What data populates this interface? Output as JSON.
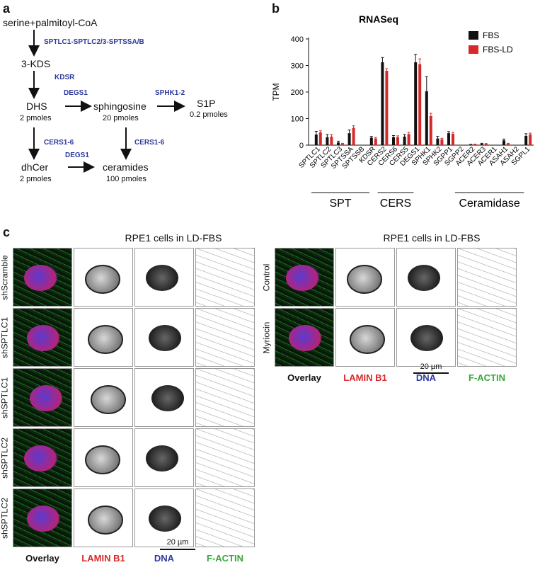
{
  "panel_a": {
    "letter": "a",
    "start": "serine+palmitoyl-CoA",
    "enzyme_spt": "SPTLC1-SPTLC2/3-SPTSSA/B",
    "kds": "3-KDS",
    "enzyme_kdsr": "KDSR",
    "dhs": "DHS",
    "dhs_amt": "2 pmoles",
    "enzyme_degs1_top": "DEGS1",
    "sphingosine": "sphingosine",
    "sphingosine_amt": "20 pmoles",
    "enzyme_sphk": "SPHK1-2",
    "s1p": "S1P",
    "s1p_amt": "0.2 pmoles",
    "enzyme_cers_left": "CERS1-6",
    "enzyme_cers_right": "CERS1-6",
    "dhcer": "dhCer",
    "dhcer_amt": "2 pmoles",
    "enzyme_degs1_bottom": "DEGS1",
    "ceramides": "ceramides",
    "ceramides_amt": "100 pmoles"
  },
  "panel_b": {
    "letter": "b",
    "group_labels": [
      "SPT",
      "CERS",
      "Ceramidase"
    ]
  },
  "chart_data": {
    "type": "bar",
    "title": "RNASeq",
    "ylabel": "TPM",
    "xlabel": "",
    "ylim": [
      0,
      400
    ],
    "yticks": [
      0,
      100,
      200,
      300,
      400
    ],
    "legend_position": "top-right",
    "categories": [
      "SPTLC1",
      "SPTLC2",
      "SPTLC3",
      "SPTSSA",
      "SPTSSB",
      "KDSR",
      "CERS2",
      "CERS6",
      "CERS5",
      "DEGS1",
      "SPHK1",
      "SPHK2",
      "SGPP1",
      "SGPP2",
      "ACER2",
      "ACER3",
      "ACER1",
      "ASAH1",
      "ASAH2",
      "SGPL1"
    ],
    "series": [
      {
        "name": "FBS",
        "color": "#111111",
        "values": [
          40,
          30,
          10,
          45,
          0,
          28,
          312,
          30,
          32,
          312,
          203,
          25,
          45,
          0,
          2,
          5,
          0,
          18,
          0,
          35
        ],
        "errors": [
          12,
          10,
          5,
          12,
          0,
          5,
          18,
          6,
          8,
          30,
          55,
          8,
          6,
          0,
          1,
          2,
          0,
          5,
          0,
          8
        ]
      },
      {
        "name": "FBS-LD",
        "color": "#d62a2a",
        "values": [
          48,
          32,
          5,
          65,
          0,
          25,
          280,
          30,
          42,
          305,
          110,
          22,
          43,
          0,
          3,
          5,
          0,
          5,
          0,
          40
        ],
        "errors": [
          6,
          8,
          2,
          8,
          0,
          4,
          8,
          5,
          6,
          20,
          10,
          4,
          5,
          0,
          1,
          1,
          0,
          2,
          0,
          5
        ]
      }
    ]
  },
  "panel_c": {
    "letter": "c",
    "left_title": "RPE1 cells in LD-FBS",
    "right_title": "RPE1 cells in LD-FBS",
    "left_rows": [
      "shScramble",
      "shSPTLC1",
      "shSPTLC1",
      "shSPTLC2",
      "shSPTLC2"
    ],
    "right_rows": [
      "Control",
      "Myriocin"
    ],
    "channels": [
      "Overlay",
      "LAMIN B1",
      "DNA",
      "F-ACTIN"
    ],
    "channel_colors": [
      "#111111",
      "#d62a2a",
      "#2e3a9c",
      "#3aa63a"
    ],
    "scale_left": "20 µm",
    "scale_right": "20 µm"
  }
}
